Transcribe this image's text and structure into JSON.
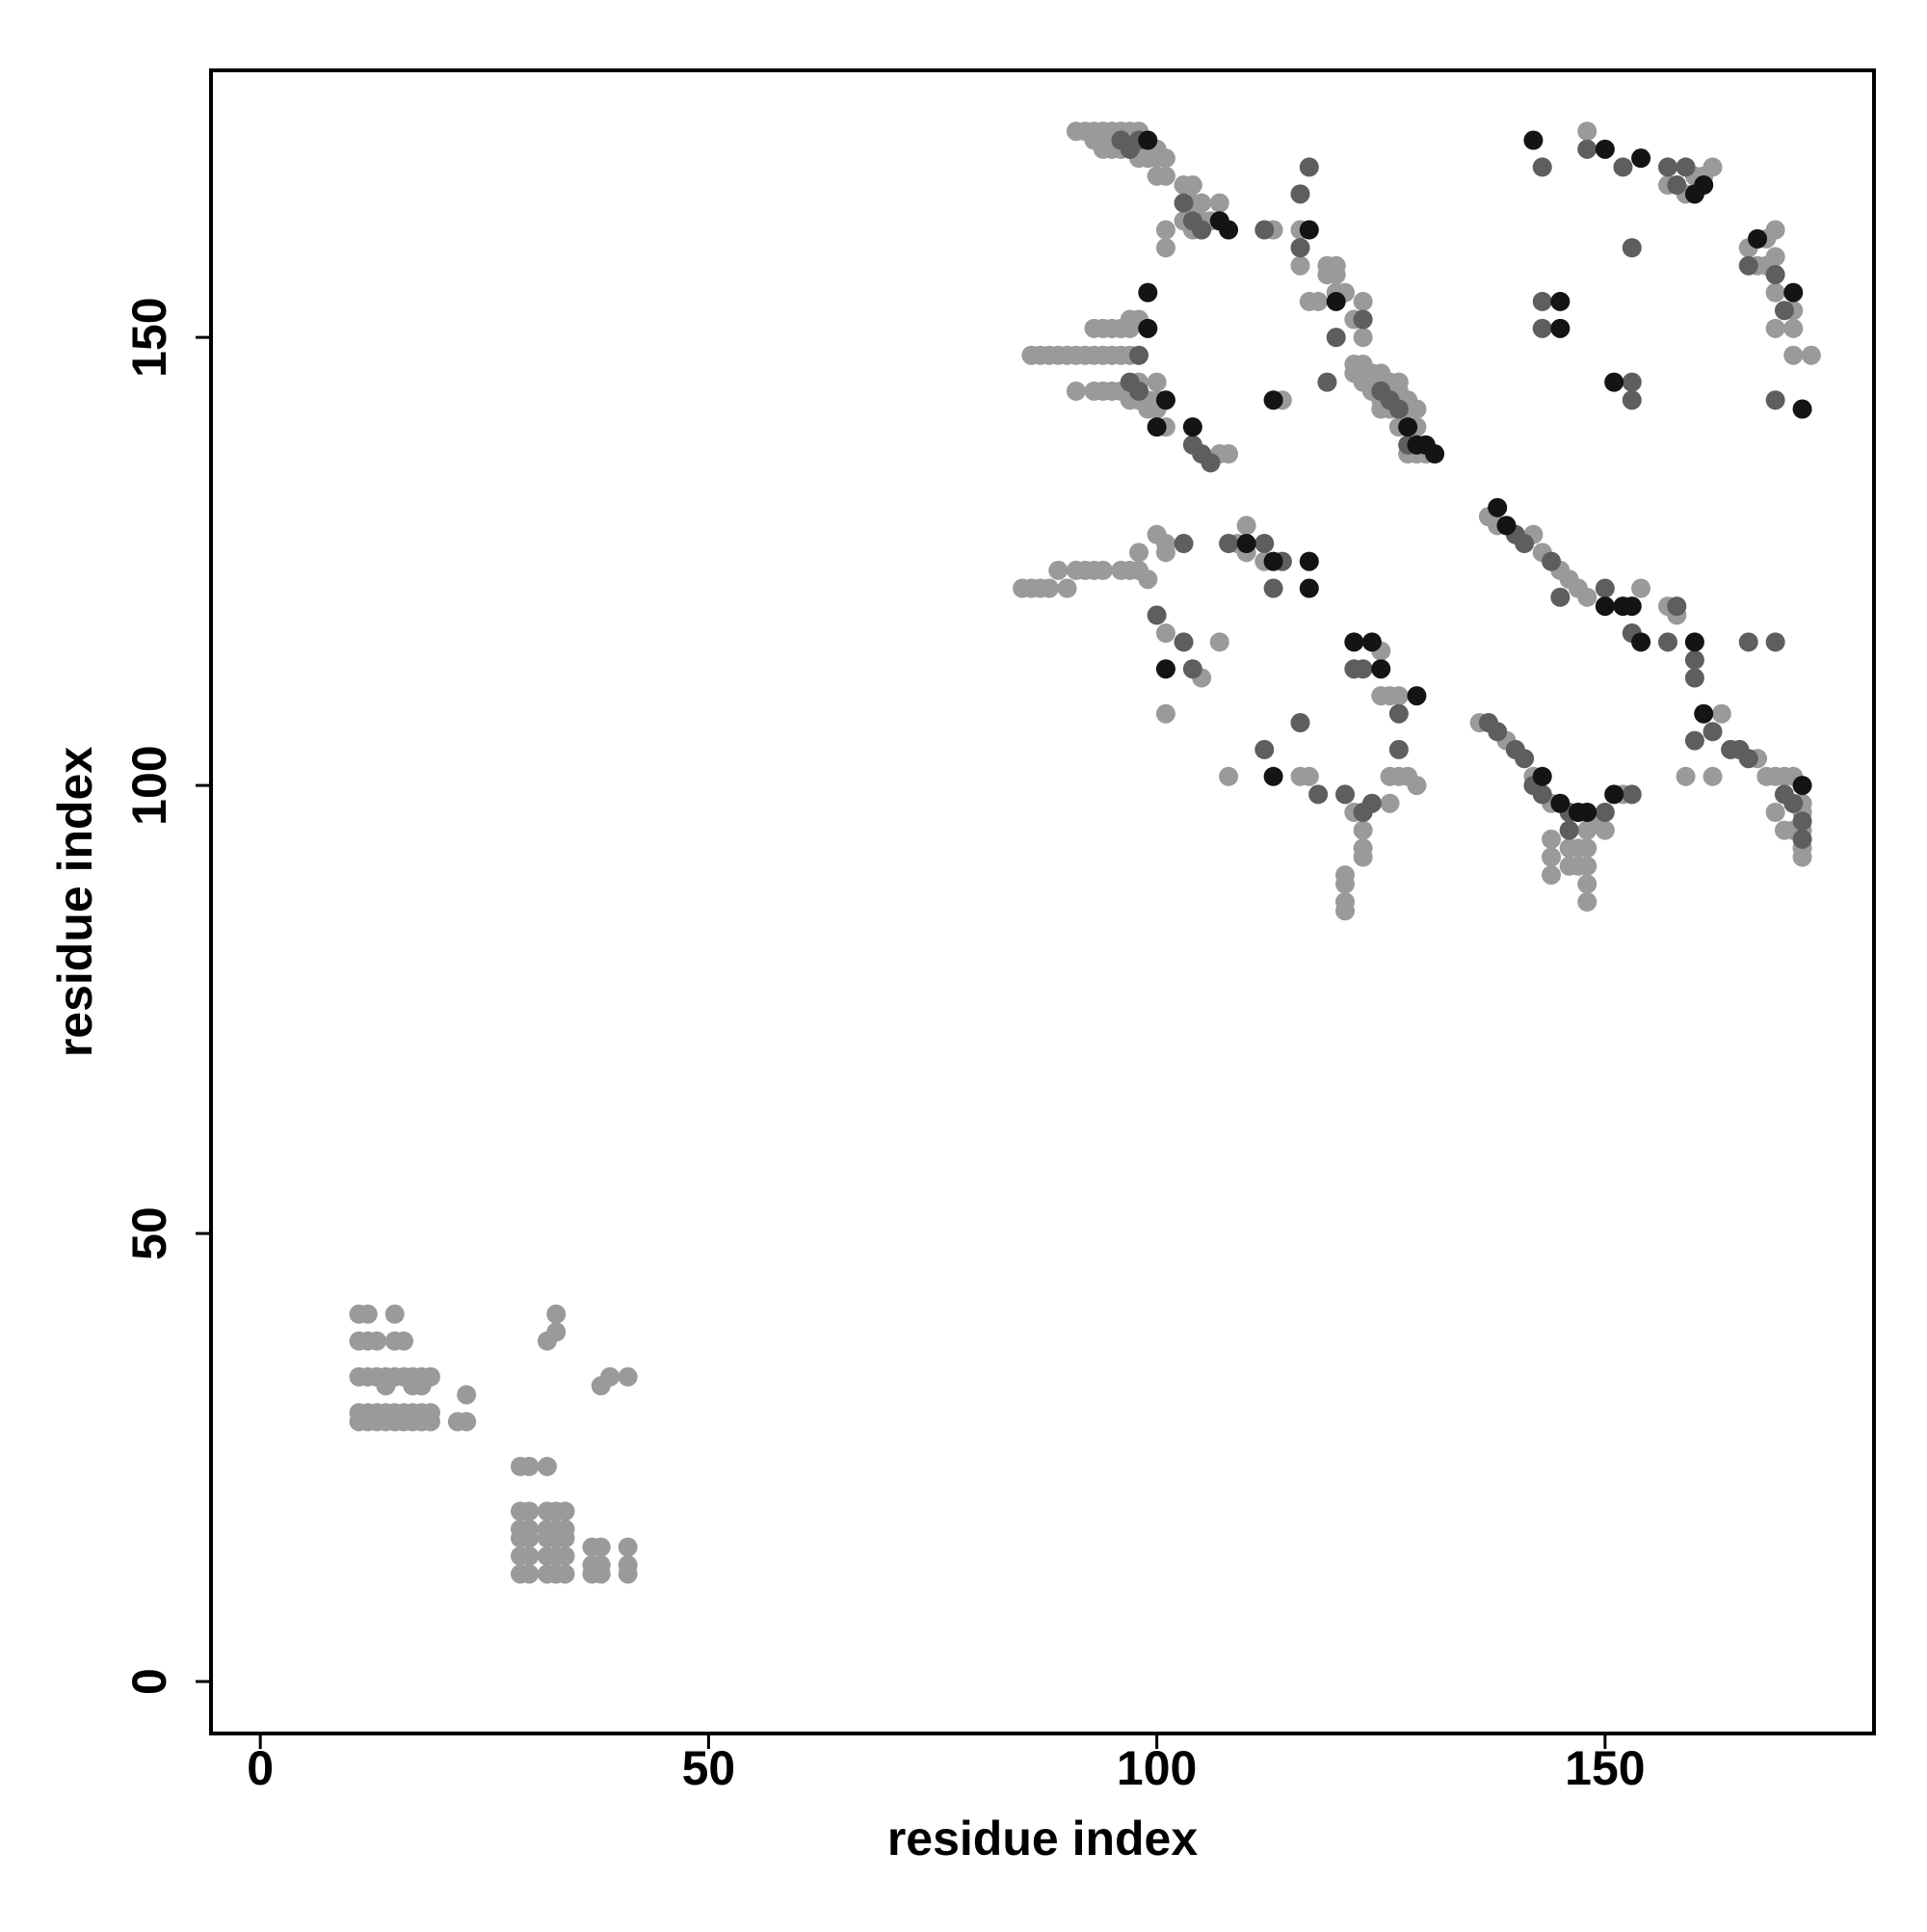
{
  "chart_data": {
    "type": "scatter",
    "xlabel": "residue index",
    "ylabel": "residue index",
    "xlim": [
      -5.5,
      180
    ],
    "ylim": [
      -5.8,
      179.8
    ],
    "xticks": [
      0,
      50,
      100,
      150
    ],
    "yticks": [
      0,
      50,
      100,
      150
    ],
    "series": [
      {
        "color": "#9a9a9a",
        "x": [
          11,
          12,
          15,
          11,
          12,
          13,
          15,
          16,
          11,
          12,
          13,
          14,
          15,
          16,
          17,
          18,
          19,
          14,
          17,
          18,
          11,
          12,
          13,
          14,
          15,
          16,
          17,
          18,
          19,
          11,
          12,
          13,
          14,
          15,
          16,
          17,
          18,
          19,
          22,
          23,
          23,
          29,
          30,
          32,
          29,
          30,
          32,
          33,
          34,
          29,
          30,
          32,
          33,
          34,
          29,
          30,
          32,
          33,
          34,
          29,
          30,
          32,
          33,
          34,
          29,
          30,
          32,
          33,
          34,
          37,
          38,
          37,
          38,
          37,
          38,
          41,
          41,
          41,
          32,
          33,
          33,
          38,
          39,
          41,
          91,
          92,
          93,
          94,
          95,
          96,
          97,
          98,
          93,
          94,
          95,
          97,
          94,
          95,
          96,
          98,
          99,
          100,
          98,
          99,
          100,
          101,
          100,
          101,
          103,
          104,
          104,
          105,
          107,
          103,
          105,
          106,
          104,
          113,
          116,
          119,
          120,
          119,
          120,
          120,
          121,
          117,
          118,
          123,
          122,
          123,
          122,
          123,
          122,
          123,
          124,
          125,
          123,
          124,
          126,
          127,
          124,
          126,
          127,
          125,
          127,
          128,
          125,
          126,
          128,
          129,
          127,
          129,
          128,
          129,
          130,
          86,
          87,
          88,
          89,
          90,
          91,
          92,
          93,
          94,
          95,
          96,
          97,
          93,
          94,
          95,
          96,
          97,
          97,
          98,
          91,
          93,
          94,
          95,
          96,
          97,
          98,
          100,
          97,
          98,
          99,
          100,
          99,
          100,
          101,
          107,
          108,
          101,
          101,
          114,
          116,
          137,
          138,
          142,
          143,
          145,
          146,
          147,
          148,
          154,
          157,
          158,
          163,
          167,
          168,
          169,
          170,
          171,
          172,
          172,
          172,
          172,
          172,
          171,
          170,
          169,
          162,
          159,
          136,
          139,
          142,
          144,
          149,
          152,
          150,
          148,
          148,
          148,
          148,
          148,
          147,
          147,
          146,
          146,
          144,
          144,
          144,
          85,
          86,
          87,
          88,
          89,
          90,
          91,
          92,
          93,
          94,
          96,
          97,
          98,
          98,
          99,
          100,
          101,
          101,
          101,
          105,
          107,
          109,
          110,
          110,
          112,
          116,
          117,
          101,
          125,
          126,
          127,
          125,
          126,
          127,
          128,
          129,
          126,
          122,
          123,
          123,
          123,
          121,
          121,
          121,
          121,
          108,
          148,
          162,
          160,
          161,
          157,
          159,
          168,
          167,
          169,
          168,
          166,
          169,
          169,
          171,
          169,
          171,
          171,
          173
        ],
        "values": [
          41,
          41,
          41,
          38,
          38,
          38,
          38,
          38,
          34,
          34,
          34,
          34,
          34,
          34,
          34,
          34,
          34,
          33,
          33,
          33,
          30,
          30,
          30,
          30,
          30,
          30,
          30,
          30,
          30,
          29,
          29,
          29,
          29,
          29,
          29,
          29,
          29,
          29,
          29,
          29,
          32,
          24,
          24,
          24,
          19,
          19,
          19,
          19,
          19,
          17,
          17,
          17,
          17,
          17,
          16,
          16,
          16,
          16,
          16,
          14,
          14,
          14,
          14,
          14,
          12,
          12,
          12,
          12,
          12,
          15,
          15,
          13,
          13,
          12,
          12,
          15,
          13,
          12,
          38,
          39,
          41,
          33,
          34,
          34,
          173,
          173,
          173,
          173,
          173,
          173,
          173,
          173,
          172,
          172,
          172,
          172,
          171,
          171,
          171,
          171,
          171,
          171,
          170,
          170,
          170,
          170,
          168,
          168,
          167,
          167,
          165,
          165,
          165,
          163,
          163,
          163,
          162,
          162,
          162,
          158,
          158,
          157,
          157,
          155,
          155,
          154,
          154,
          154,
          152,
          150,
          147,
          147,
          146,
          146,
          146,
          146,
          145,
          145,
          145,
          145,
          144,
          144,
          144,
          143,
          143,
          143,
          142,
          142,
          142,
          142,
          140,
          140,
          137,
          137,
          137,
          148,
          148,
          148,
          148,
          148,
          148,
          148,
          148,
          148,
          148,
          148,
          148,
          151,
          151,
          151,
          151,
          151,
          152,
          152,
          144,
          144,
          144,
          144,
          144,
          144,
          145,
          145,
          143,
          143,
          143,
          143,
          142,
          142,
          140,
          137,
          137,
          160,
          162,
          143,
          158,
          130,
          129,
          128,
          126,
          124,
          123,
          122,
          121,
          122,
          120,
          119,
          108,
          103,
          101,
          101,
          101,
          101,
          98,
          97,
          95,
          93,
          92,
          95,
          95,
          97,
          101,
          101,
          107,
          105,
          101,
          98,
          96,
          99,
          95,
          95,
          93,
          91,
          89,
          87,
          91,
          93,
          93,
          91,
          94,
          92,
          90,
          122,
          122,
          122,
          122,
          124,
          122,
          124,
          124,
          124,
          124,
          124,
          124,
          126,
          124,
          123,
          128,
          127,
          126,
          117,
          112,
          116,
          127,
          129,
          126,
          125,
          101,
          101,
          108,
          110,
          110,
          110,
          115,
          101,
          101,
          101,
          100,
          98,
          97,
          95,
          93,
          92,
          90,
          89,
          87,
          86,
          101,
          173,
          169,
          168,
          168,
          167,
          166,
          158,
          158,
          162,
          161,
          160,
          159,
          155,
          153,
          151,
          151,
          148,
          148
        ]
      },
      {
        "color": "#5e5e5e",
        "x": [
          97,
          98,
          96,
          98,
          98,
          97,
          103,
          104,
          105,
          112,
          116,
          116,
          119,
          120,
          123,
          125,
          126,
          127,
          128,
          104,
          105,
          106,
          137,
          138,
          140,
          141,
          142,
          143,
          146,
          150,
          153,
          146,
          140,
          141,
          144,
          145,
          150,
          153,
          157,
          158,
          160,
          160,
          162,
          164,
          165,
          160,
          166,
          169,
          166,
          171,
          172,
          172,
          170,
          143,
          148,
          152,
          157,
          158,
          159,
          166,
          169,
          170,
          169,
          143,
          143,
          153,
          153,
          153,
          122,
          123,
          124,
          127,
          112,
          116,
          118,
          112,
          114,
          113,
          103,
          104,
          100,
          103,
          108,
          123,
          121,
          127,
          117
        ],
        "values": [
          171,
          172,
          172,
          148,
          144,
          145,
          165,
          163,
          162,
          162,
          160,
          166,
          145,
          150,
          152,
          144,
          143,
          142,
          138,
          138,
          137,
          136,
          107,
          106,
          104,
          103,
          100,
          99,
          97,
          97,
          99,
          95,
          128,
          127,
          125,
          121,
          122,
          117,
          116,
          120,
          114,
          112,
          106,
          104,
          104,
          105,
          103,
          116,
          116,
          98,
          96,
          94,
          99,
          169,
          171,
          169,
          169,
          167,
          169,
          158,
          157,
          153,
          143,
          154,
          151,
          145,
          143,
          160,
          113,
          113,
          98,
          104,
          104,
          107,
          99,
          127,
          125,
          122,
          127,
          113,
          119,
          116,
          127,
          97,
          99,
          108,
          169
        ]
      },
      {
        "color": "#141414",
        "x": [
          99,
          100,
          99,
          99,
          101,
          104,
          107,
          108,
          113,
          117,
          120,
          130,
          131,
          128,
          129,
          138,
          139,
          142,
          145,
          145,
          151,
          150,
          154,
          161,
          160,
          167,
          171,
          172,
          151,
          147,
          143,
          145,
          153,
          150,
          160,
          161,
          172,
          124,
          122,
          125,
          101,
          110,
          113,
          117,
          117,
          113,
          129,
          148,
          152,
          154
        ],
        "values": [
          172,
          140,
          155,
          151,
          143,
          140,
          163,
          162,
          143,
          162,
          154,
          138,
          137,
          140,
          138,
          131,
          129,
          172,
          154,
          151,
          145,
          171,
          170,
          167,
          166,
          161,
          155,
          142,
          99,
          97,
          101,
          98,
          120,
          120,
          116,
          108,
          100,
          116,
          116,
          113,
          113,
          127,
          125,
          122,
          125,
          101,
          110,
          97,
          120,
          116
        ]
      }
    ]
  }
}
